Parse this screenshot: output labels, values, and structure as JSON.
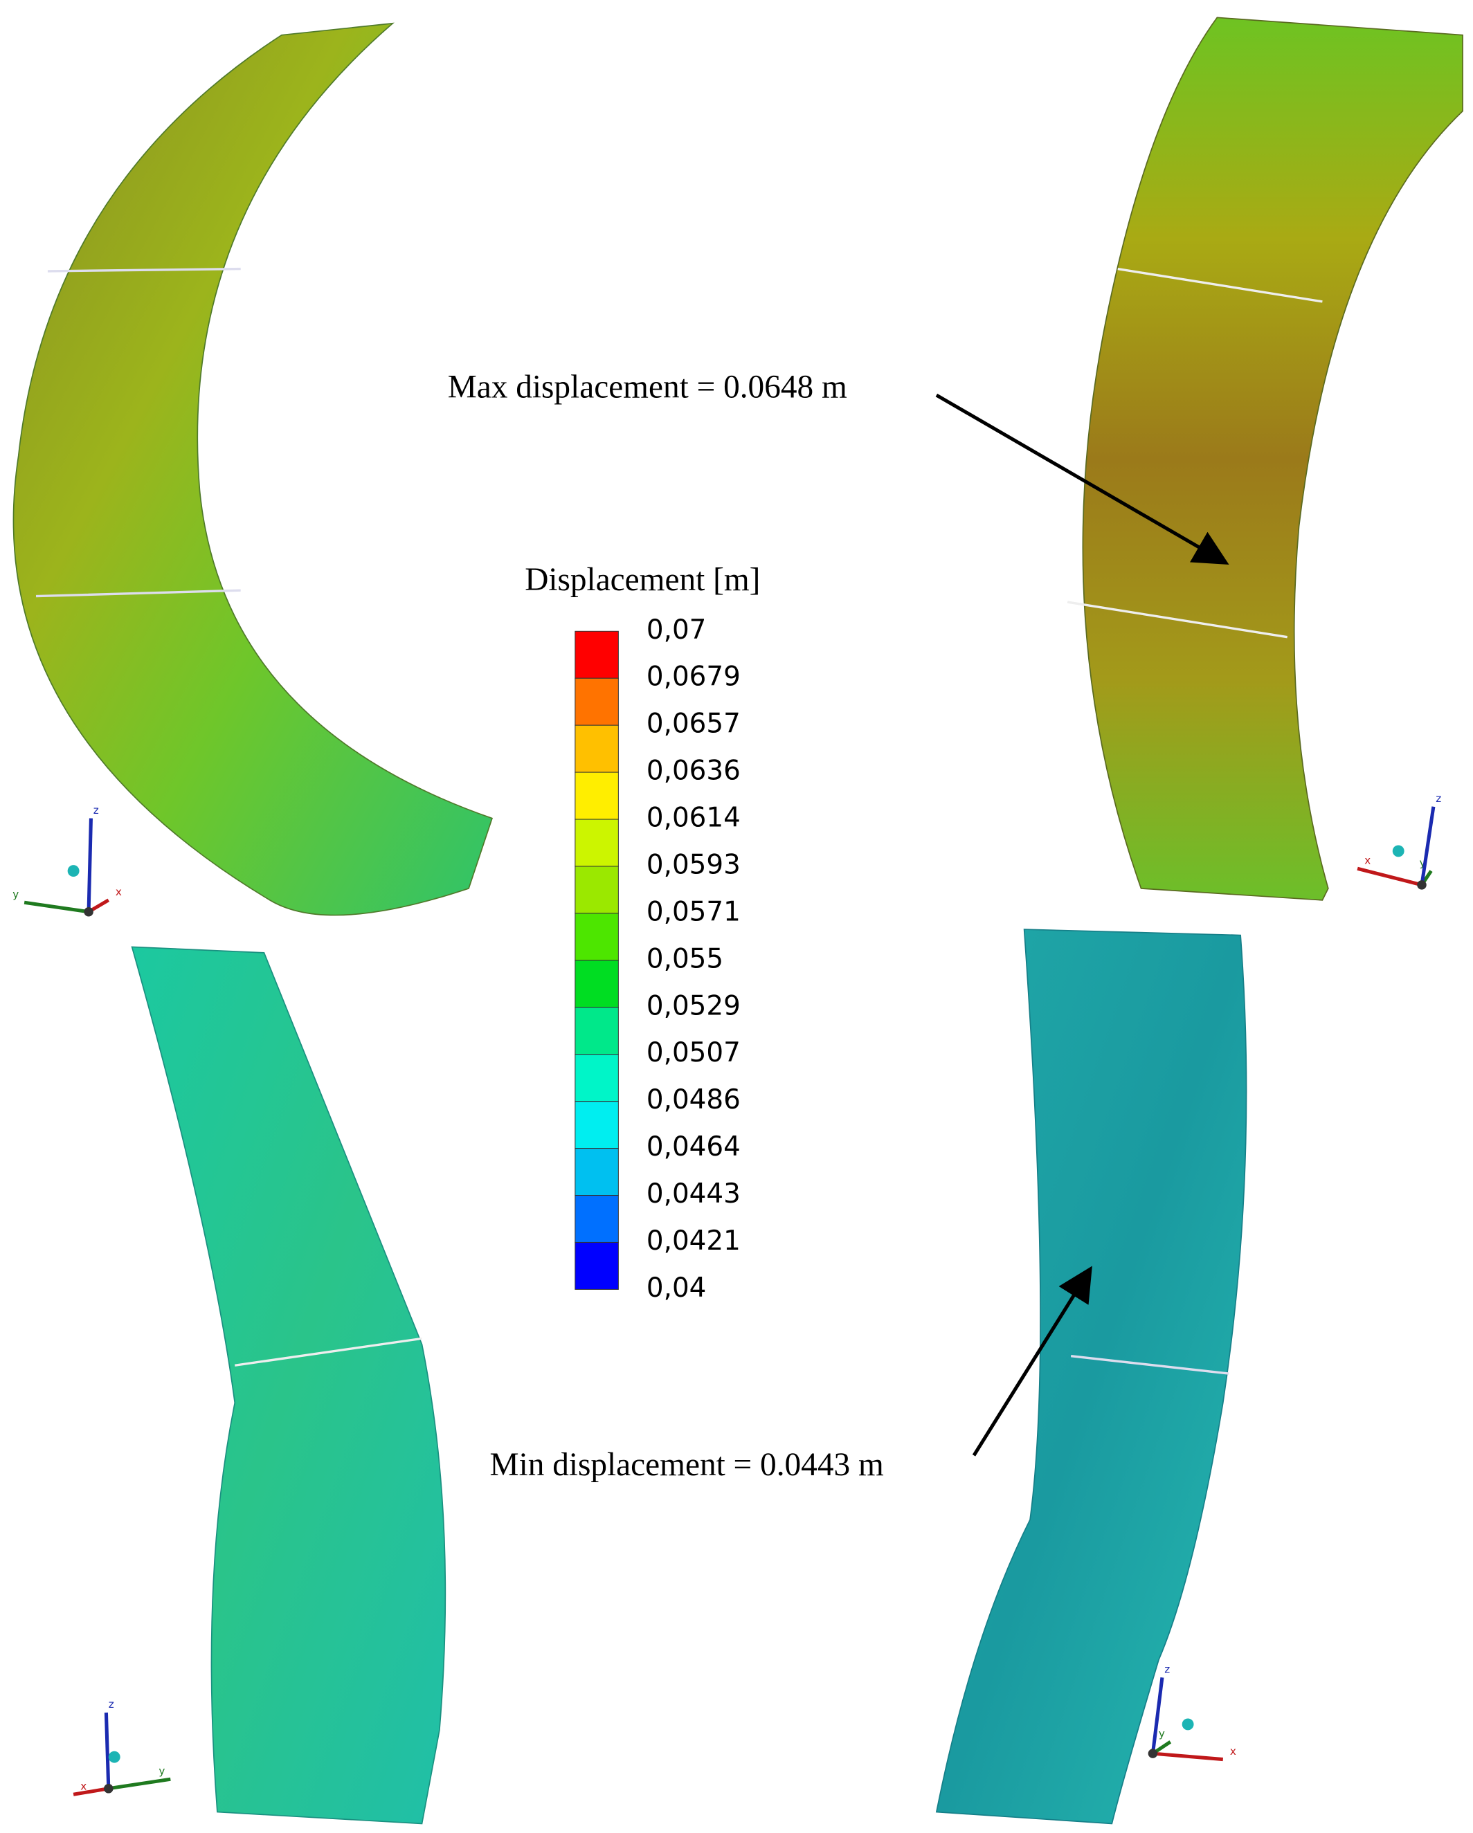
{
  "annotations": {
    "max": "Max displacement = 0.0648 m",
    "min": "Min displacement = 0.0443 m"
  },
  "legend": {
    "title": "Displacement [m]",
    "colors": [
      "#ff0000",
      "#ff7300",
      "#ffc000",
      "#ffee00",
      "#ccf500",
      "#9be800",
      "#4de600",
      "#00dd22",
      "#00e88a",
      "#00f5c8",
      "#00eef0",
      "#00c0f0",
      "#0070ff",
      "#0000ff"
    ],
    "labels": [
      "0,07",
      "0,0679",
      "0,0657",
      "0,0636",
      "0,0614",
      "0,0593",
      "0,0571",
      "0,055",
      "0,0529",
      "0,0507",
      "0,0486",
      "0,0464",
      "0,0443",
      "0,0421",
      "0,04"
    ]
  },
  "triads": [
    {
      "x": "x",
      "y": "y",
      "z": "z"
    },
    {
      "x": "x",
      "y": "y",
      "z": "z"
    },
    {
      "x": "x",
      "y": "y",
      "z": "z"
    },
    {
      "x": "x",
      "y": "y",
      "z": "z"
    }
  ]
}
